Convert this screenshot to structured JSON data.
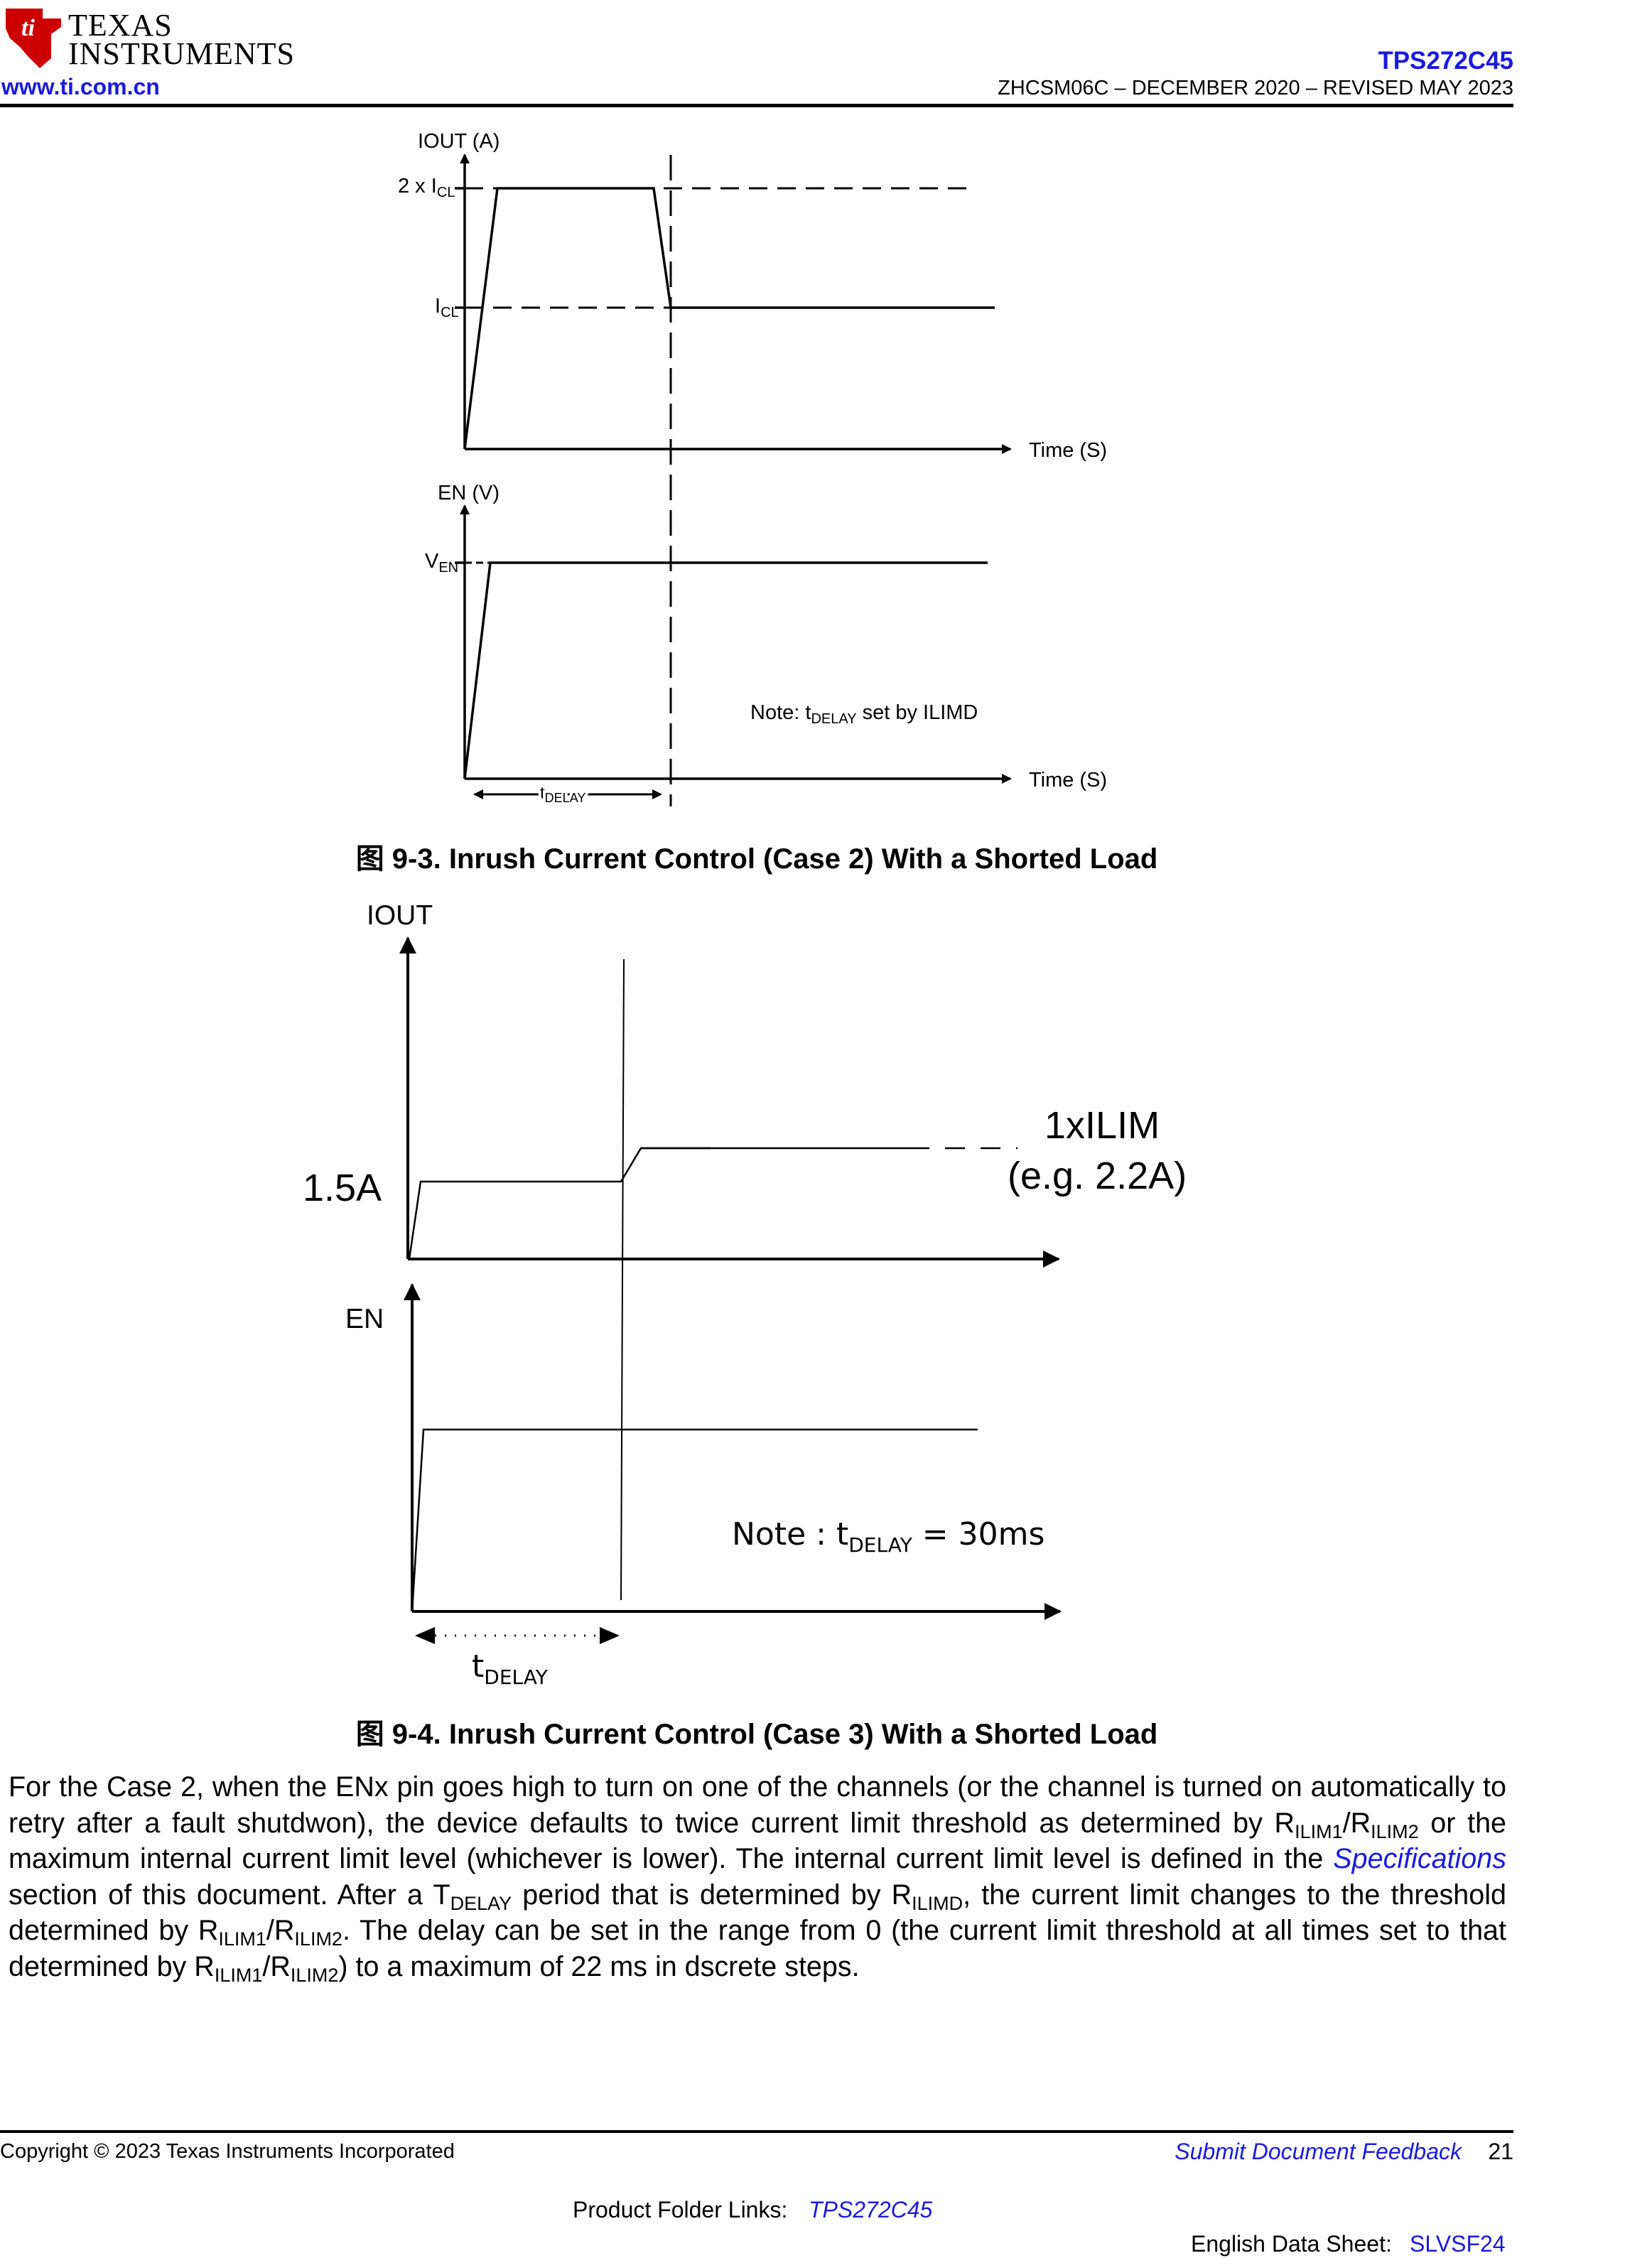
{
  "header": {
    "logo_line1": "Texas",
    "logo_line2": "Instruments",
    "site_url": "www.ti.com.cn",
    "part_number": "TPS272C45",
    "doc_id": "ZHCSM06C – DECEMBER 2020 – REVISED MAY 2023"
  },
  "figure_9_3": {
    "caption": "图 9-3. Inrush Current Control (Case 2) With a Shorted Load",
    "top_y_label": "IOUT (A)",
    "level_2icl_prefix": "2 x I",
    "level_icl_prefix": "I",
    "sub_cl": "CL",
    "top_x_label": "Time (S)",
    "bottom_y_label": "EN (V)",
    "level_ven_prefix": "V",
    "sub_en": "EN",
    "bottom_x_label": "Time (S)",
    "note_prefix": "Note: t",
    "note_sub": "DELAY",
    "note_suffix": " set by ILIMD",
    "tdelay_prefix": "t",
    "tdelay_sub": "DELAY"
  },
  "figure_9_4": {
    "caption": "图 9-4. Inrush Current Control (Case 3) With a Shorted Load",
    "top_y_label": "IOUT",
    "level_label": "1.5A",
    "ilim_label_line1": "1xILIM",
    "ilim_label_line2": "(e.g. 2.2A)",
    "bottom_y_label": "EN",
    "note_prefix": "Note : t",
    "note_sub": "DELAY",
    "note_suffix": " = 30ms",
    "tdelay_prefix": "t",
    "tdelay_sub": "DELAY"
  },
  "paragraph": {
    "s1": "For the Case 2, when the ENx pin goes high to turn on one of the channels (or the channel is turned on automatically to retry after a fault shutdwon), the device defaults to twice current limit threshold as determined by R",
    "sub_ilim1": "ILIM1",
    "slash": "/R",
    "sub_ilim2": "ILIM2",
    "s2": " or the maximum internal current limit level (whichever is lower). The internal current limit level is defined in the ",
    "spec_link": "Specifications",
    "s3": " section of this document. After a T",
    "sub_delay": "DELAY",
    "s4": " period that is determined by R",
    "sub_ilimd": "ILIMD",
    "s5": ", the current limit changes to the threshold determined by R",
    "s6": ". The delay can be set in the range from 0 (the current limit threshold at all times set to that determined by R",
    "s7": ") to a maximum of 22 ms in dscrete steps."
  },
  "footer": {
    "copyright": "Copyright © 2023 Texas Instruments Incorporated",
    "feedback_link": "Submit Document Feedback",
    "page_number": "21",
    "product_folder_label": "Product Folder Links: ",
    "product_folder_link": "TPS272C45",
    "english_ds_label": "English Data Sheet: ",
    "english_ds_link": "SLVSF24"
  },
  "colors": {
    "link": "#1a1adf",
    "ti_red": "#cc0000",
    "text": "#000000"
  }
}
